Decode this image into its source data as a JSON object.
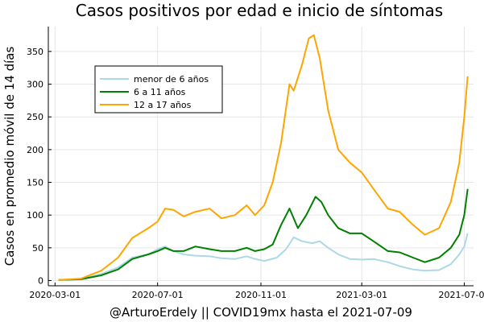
{
  "chart_data": {
    "type": "line",
    "title": "Casos positivos por edad e inicio de síntomas",
    "xlabel": "@ArturoErdely || COVID19mx hasta el 2021-07-09",
    "ylabel": "Casos en promedio móvil de 14 días",
    "x_ticks": [
      "2020-03-01",
      "2020-07-01",
      "2020-11-01",
      "2021-03-01",
      "2021-07-01"
    ],
    "y_ticks": [
      0,
      50,
      100,
      150,
      200,
      250,
      300,
      350
    ],
    "xlim": [
      "2020-02-22",
      "2021-07-12"
    ],
    "ylim": [
      -8,
      388
    ],
    "grid": true,
    "legend_position": "top-left",
    "series": [
      {
        "name": "menor de 6 años",
        "color": "#add8e6",
        "points": [
          [
            "2020-03-05",
            1
          ],
          [
            "2020-04-01",
            2
          ],
          [
            "2020-04-25",
            10
          ],
          [
            "2020-05-15",
            20
          ],
          [
            "2020-06-01",
            35
          ],
          [
            "2020-06-20",
            40
          ],
          [
            "2020-07-01",
            48
          ],
          [
            "2020-07-10",
            52
          ],
          [
            "2020-07-20",
            45
          ],
          [
            "2020-08-01",
            40
          ],
          [
            "2020-08-15",
            38
          ],
          [
            "2020-09-01",
            37
          ],
          [
            "2020-09-15",
            34
          ],
          [
            "2020-10-01",
            33
          ],
          [
            "2020-10-15",
            37
          ],
          [
            "2020-10-25",
            33
          ],
          [
            "2020-11-05",
            30
          ],
          [
            "2020-11-20",
            35
          ],
          [
            "2020-12-01",
            48
          ],
          [
            "2020-12-10",
            66
          ],
          [
            "2020-12-20",
            60
          ],
          [
            "2021-01-01",
            57
          ],
          [
            "2021-01-10",
            60
          ],
          [
            "2021-01-20",
            50
          ],
          [
            "2021-02-01",
            40
          ],
          [
            "2021-02-15",
            33
          ],
          [
            "2021-03-01",
            32
          ],
          [
            "2021-03-15",
            33
          ],
          [
            "2021-04-01",
            28
          ],
          [
            "2021-04-15",
            22
          ],
          [
            "2021-05-01",
            17
          ],
          [
            "2021-05-15",
            15
          ],
          [
            "2021-06-01",
            16
          ],
          [
            "2021-06-15",
            25
          ],
          [
            "2021-06-25",
            40
          ],
          [
            "2021-07-01",
            52
          ],
          [
            "2021-07-05",
            72
          ]
        ]
      },
      {
        "name": "6 a 11 años",
        "color": "#008000",
        "points": [
          [
            "2020-03-05",
            1
          ],
          [
            "2020-04-01",
            2
          ],
          [
            "2020-04-25",
            8
          ],
          [
            "2020-05-15",
            17
          ],
          [
            "2020-06-01",
            33
          ],
          [
            "2020-06-20",
            40
          ],
          [
            "2020-07-01",
            45
          ],
          [
            "2020-07-10",
            50
          ],
          [
            "2020-07-20",
            45
          ],
          [
            "2020-08-01",
            45
          ],
          [
            "2020-08-15",
            52
          ],
          [
            "2020-09-01",
            48
          ],
          [
            "2020-09-15",
            45
          ],
          [
            "2020-10-01",
            45
          ],
          [
            "2020-10-15",
            50
          ],
          [
            "2020-10-25",
            45
          ],
          [
            "2020-11-05",
            48
          ],
          [
            "2020-11-15",
            55
          ],
          [
            "2020-11-25",
            85
          ],
          [
            "2020-12-05",
            110
          ],
          [
            "2020-12-15",
            80
          ],
          [
            "2020-12-25",
            100
          ],
          [
            "2021-01-05",
            128
          ],
          [
            "2021-01-12",
            120
          ],
          [
            "2021-01-20",
            100
          ],
          [
            "2021-02-01",
            80
          ],
          [
            "2021-02-15",
            72
          ],
          [
            "2021-03-01",
            72
          ],
          [
            "2021-03-15",
            60
          ],
          [
            "2021-04-01",
            45
          ],
          [
            "2021-04-15",
            43
          ],
          [
            "2021-05-01",
            35
          ],
          [
            "2021-05-15",
            28
          ],
          [
            "2021-06-01",
            35
          ],
          [
            "2021-06-15",
            50
          ],
          [
            "2021-06-25",
            70
          ],
          [
            "2021-07-01",
            100
          ],
          [
            "2021-07-05",
            140
          ]
        ]
      },
      {
        "name": "12 a 17 años",
        "color": "#ffa500",
        "points": [
          [
            "2020-03-05",
            1
          ],
          [
            "2020-04-01",
            3
          ],
          [
            "2020-04-25",
            15
          ],
          [
            "2020-05-15",
            35
          ],
          [
            "2020-06-01",
            65
          ],
          [
            "2020-06-20",
            80
          ],
          [
            "2020-07-01",
            90
          ],
          [
            "2020-07-10",
            110
          ],
          [
            "2020-07-20",
            108
          ],
          [
            "2020-08-01",
            98
          ],
          [
            "2020-08-15",
            105
          ],
          [
            "2020-09-01",
            110
          ],
          [
            "2020-09-15",
            95
          ],
          [
            "2020-10-01",
            100
          ],
          [
            "2020-10-15",
            115
          ],
          [
            "2020-10-25",
            100
          ],
          [
            "2020-11-05",
            115
          ],
          [
            "2020-11-15",
            150
          ],
          [
            "2020-11-25",
            210
          ],
          [
            "2020-12-05",
            300
          ],
          [
            "2020-12-10",
            290
          ],
          [
            "2020-12-20",
            330
          ],
          [
            "2020-12-28",
            370
          ],
          [
            "2021-01-03",
            375
          ],
          [
            "2021-01-10",
            340
          ],
          [
            "2021-01-20",
            260
          ],
          [
            "2021-02-01",
            200
          ],
          [
            "2021-02-15",
            180
          ],
          [
            "2021-03-01",
            165
          ],
          [
            "2021-03-15",
            140
          ],
          [
            "2021-04-01",
            110
          ],
          [
            "2021-04-15",
            105
          ],
          [
            "2021-05-01",
            85
          ],
          [
            "2021-05-15",
            70
          ],
          [
            "2021-06-01",
            80
          ],
          [
            "2021-06-15",
            120
          ],
          [
            "2021-06-25",
            180
          ],
          [
            "2021-07-01",
            250
          ],
          [
            "2021-07-05",
            312
          ]
        ]
      }
    ]
  }
}
